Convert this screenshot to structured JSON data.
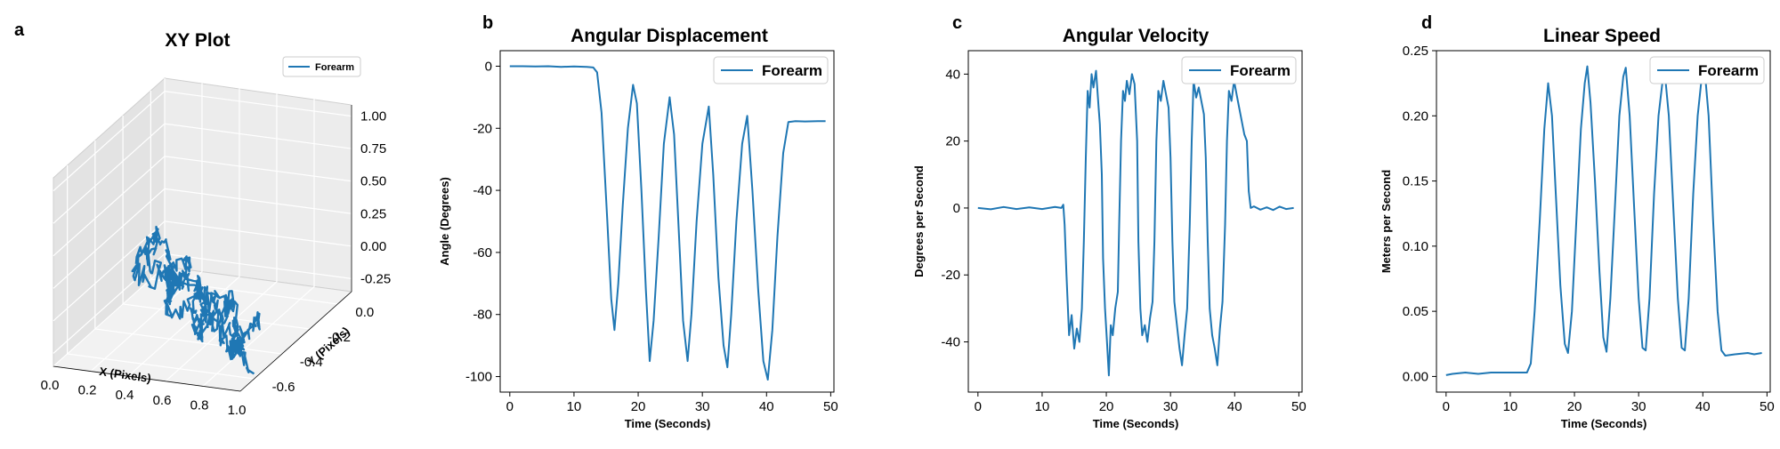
{
  "chart_data": [
    {
      "id": "a",
      "type": "line",
      "panel_label": "a",
      "title": "XY Plot",
      "xlabel": "X (Pixels)",
      "ylabel": "Y (Pixels)",
      "zlabel": "",
      "xlim": [
        0,
        1
      ],
      "ylim": [
        -0.7,
        0.1
      ],
      "zlim": [
        -0.35,
        1.1
      ],
      "xticks": [
        "0.0",
        "0.2",
        "0.4",
        "0.6",
        "0.8",
        "1.0"
      ],
      "yticks": [
        "-0.6",
        "-0.4",
        "-0.2",
        "0.0"
      ],
      "zticks": [
        "-0.25",
        "0.00",
        "0.25",
        "0.50",
        "0.75",
        "1.00"
      ],
      "legend": "top-right",
      "grid": true,
      "projection": "3d",
      "series": [
        {
          "name": "Forearm",
          "color": "#1f77b4",
          "trajectory": {
            "x_range": [
              0.0,
              1.0
            ],
            "y_range": [
              -0.05,
              -0.62
            ],
            "z_range": [
              -0.35,
              0.15
            ],
            "note_oscillation": "repeated back-and-forth strokes"
          }
        }
      ]
    },
    {
      "id": "b",
      "type": "line",
      "panel_label": "b",
      "title": "Angular Displacement",
      "xlabel": "Time (Seconds)",
      "ylabel": "Angle (Degrees)",
      "xlim": [
        -1.5,
        50.5
      ],
      "ylim": [
        -105,
        5
      ],
      "xticks": [
        0,
        10,
        20,
        30,
        40,
        50
      ],
      "yticks": [
        0,
        -20,
        -40,
        -60,
        -80,
        -100
      ],
      "legend": "top-right",
      "grid": false,
      "series": [
        {
          "name": "Forearm",
          "color": "#1f77b4",
          "points": [
            [
              0,
              0
            ],
            [
              2,
              0
            ],
            [
              4,
              -0.1
            ],
            [
              6,
              0
            ],
            [
              8,
              -0.2
            ],
            [
              10,
              -0.1
            ],
            [
              12,
              -0.2
            ],
            [
              13,
              -0.4
            ],
            [
              13.6,
              -2
            ],
            [
              14.3,
              -15
            ],
            [
              15.2,
              -50
            ],
            [
              15.8,
              -75
            ],
            [
              16.3,
              -85
            ],
            [
              16.9,
              -70
            ],
            [
              17.6,
              -45
            ],
            [
              18.4,
              -20
            ],
            [
              19.2,
              -6
            ],
            [
              19.8,
              -12
            ],
            [
              20.5,
              -40
            ],
            [
              21.2,
              -72
            ],
            [
              21.8,
              -95
            ],
            [
              22.4,
              -82
            ],
            [
              23.2,
              -55
            ],
            [
              24.0,
              -25
            ],
            [
              24.9,
              -10
            ],
            [
              25.6,
              -22
            ],
            [
              26.3,
              -52
            ],
            [
              27.0,
              -82
            ],
            [
              27.7,
              -95
            ],
            [
              28.3,
              -80
            ],
            [
              29.1,
              -50
            ],
            [
              30.0,
              -25
            ],
            [
              31.0,
              -13
            ],
            [
              31.7,
              -35
            ],
            [
              32.5,
              -68
            ],
            [
              33.3,
              -90
            ],
            [
              33.9,
              -97
            ],
            [
              34.5,
              -80
            ],
            [
              35.3,
              -50
            ],
            [
              36.2,
              -25
            ],
            [
              37.0,
              -16
            ],
            [
              37.8,
              -40
            ],
            [
              38.7,
              -72
            ],
            [
              39.5,
              -95
            ],
            [
              40.2,
              -101
            ],
            [
              40.9,
              -85
            ],
            [
              41.7,
              -55
            ],
            [
              42.6,
              -28
            ],
            [
              43.4,
              -18
            ],
            [
              44.5,
              -17.7
            ],
            [
              46,
              -17.8
            ],
            [
              48,
              -17.7
            ],
            [
              49.2,
              -17.7
            ]
          ]
        }
      ]
    },
    {
      "id": "c",
      "type": "line",
      "panel_label": "c",
      "title": "Angular Velocity",
      "xlabel": "Time (Seconds)",
      "ylabel": "Degrees per Second",
      "xlim": [
        -1.5,
        50.5
      ],
      "ylim": [
        -55,
        47
      ],
      "xticks": [
        0,
        10,
        20,
        30,
        40,
        50
      ],
      "yticks": [
        40,
        20,
        0,
        -20,
        -40
      ],
      "legend": "top-right",
      "grid": false,
      "series": [
        {
          "name": "Forearm",
          "color": "#1f77b4",
          "points": [
            [
              0,
              0
            ],
            [
              2,
              -0.4
            ],
            [
              4,
              0.3
            ],
            [
              6,
              -0.3
            ],
            [
              8,
              0.2
            ],
            [
              10,
              -0.3
            ],
            [
              12,
              0.3
            ],
            [
              13,
              0
            ],
            [
              13.3,
              1
            ],
            [
              13.5,
              -5
            ],
            [
              13.8,
              -20
            ],
            [
              14.2,
              -38
            ],
            [
              14.6,
              -32
            ],
            [
              15.0,
              -42
            ],
            [
              15.4,
              -36
            ],
            [
              15.8,
              -40
            ],
            [
              16.2,
              -30
            ],
            [
              16.5,
              -10
            ],
            [
              16.8,
              15
            ],
            [
              17.1,
              35
            ],
            [
              17.4,
              30
            ],
            [
              17.7,
              40
            ],
            [
              18.0,
              36
            ],
            [
              18.4,
              41
            ],
            [
              18.8,
              30
            ],
            [
              19.0,
              25
            ],
            [
              19.3,
              10
            ],
            [
              19.5,
              -15
            ],
            [
              19.8,
              -30
            ],
            [
              20.1,
              -40
            ],
            [
              20.4,
              -50
            ],
            [
              20.7,
              -35
            ],
            [
              21.0,
              -38
            ],
            [
              21.4,
              -30
            ],
            [
              21.8,
              -25
            ],
            [
              22.0,
              -5
            ],
            [
              22.3,
              20
            ],
            [
              22.6,
              35
            ],
            [
              22.9,
              32
            ],
            [
              23.2,
              38
            ],
            [
              23.6,
              34
            ],
            [
              24.0,
              40
            ],
            [
              24.4,
              37
            ],
            [
              24.8,
              20
            ],
            [
              25.0,
              -10
            ],
            [
              25.3,
              -30
            ],
            [
              25.6,
              -38
            ],
            [
              26.0,
              -35
            ],
            [
              26.4,
              -40
            ],
            [
              26.8,
              -33
            ],
            [
              27.2,
              -28
            ],
            [
              27.5,
              -10
            ],
            [
              27.8,
              20
            ],
            [
              28.1,
              35
            ],
            [
              28.5,
              32
            ],
            [
              28.9,
              38
            ],
            [
              29.3,
              34
            ],
            [
              29.7,
              30
            ],
            [
              30.0,
              15
            ],
            [
              30.3,
              -10
            ],
            [
              30.6,
              -28
            ],
            [
              31.0,
              -35
            ],
            [
              31.4,
              -42
            ],
            [
              31.8,
              -47
            ],
            [
              32.2,
              -38
            ],
            [
              32.6,
              -30
            ],
            [
              33.0,
              -5
            ],
            [
              33.3,
              20
            ],
            [
              33.6,
              38
            ],
            [
              34.0,
              33
            ],
            [
              34.4,
              36
            ],
            [
              34.8,
              32
            ],
            [
              35.2,
              28
            ],
            [
              35.5,
              15
            ],
            [
              35.8,
              -10
            ],
            [
              36.1,
              -30
            ],
            [
              36.5,
              -38
            ],
            [
              36.9,
              -42
            ],
            [
              37.3,
              -47
            ],
            [
              37.7,
              -36
            ],
            [
              38.1,
              -28
            ],
            [
              38.5,
              -5
            ],
            [
              38.8,
              20
            ],
            [
              39.1,
              35
            ],
            [
              39.5,
              32
            ],
            [
              39.9,
              38
            ],
            [
              40.3,
              34
            ],
            [
              40.7,
              30
            ],
            [
              41.1,
              26
            ],
            [
              41.5,
              22
            ],
            [
              41.9,
              20
            ],
            [
              42.2,
              5
            ],
            [
              42.5,
              0
            ],
            [
              43,
              0.5
            ],
            [
              44,
              -0.5
            ],
            [
              45,
              0.2
            ],
            [
              46,
              -0.6
            ],
            [
              47,
              0.4
            ],
            [
              48,
              -0.3
            ],
            [
              49.2,
              0
            ]
          ]
        }
      ]
    },
    {
      "id": "d",
      "type": "line",
      "panel_label": "d",
      "title": "Linear Speed",
      "xlabel": "Time (Seconds)",
      "ylabel": "Meters per Second",
      "xlim": [
        -1.5,
        50.5
      ],
      "ylim": [
        -0.012,
        0.25
      ],
      "xticks": [
        0,
        10,
        20,
        30,
        40,
        50
      ],
      "yticks": [
        "0.00",
        "0.05",
        "0.10",
        "0.15",
        "0.20",
        "0.25"
      ],
      "legend": "top-right",
      "grid": false,
      "series": [
        {
          "name": "Forearm",
          "color": "#1f77b4",
          "points": [
            [
              0,
              0.001
            ],
            [
              1,
              0.002
            ],
            [
              3,
              0.003
            ],
            [
              5,
              0.002
            ],
            [
              7,
              0.003
            ],
            [
              9,
              0.003
            ],
            [
              11,
              0.003
            ],
            [
              12.6,
              0.003
            ],
            [
              13.2,
              0.01
            ],
            [
              13.8,
              0.05
            ],
            [
              14.6,
              0.12
            ],
            [
              15.3,
              0.19
            ],
            [
              15.9,
              0.225
            ],
            [
              16.5,
              0.2
            ],
            [
              17.1,
              0.14
            ],
            [
              17.8,
              0.07
            ],
            [
              18.5,
              0.025
            ],
            [
              19.0,
              0.018
            ],
            [
              19.6,
              0.05
            ],
            [
              20.3,
              0.12
            ],
            [
              21.0,
              0.19
            ],
            [
              21.6,
              0.225
            ],
            [
              22.0,
              0.238
            ],
            [
              22.5,
              0.21
            ],
            [
              23.2,
              0.15
            ],
            [
              23.9,
              0.08
            ],
            [
              24.5,
              0.03
            ],
            [
              25.0,
              0.019
            ],
            [
              25.6,
              0.06
            ],
            [
              26.3,
              0.13
            ],
            [
              27.0,
              0.2
            ],
            [
              27.6,
              0.23
            ],
            [
              28.0,
              0.237
            ],
            [
              28.6,
              0.2
            ],
            [
              29.3,
              0.13
            ],
            [
              30.0,
              0.06
            ],
            [
              30.6,
              0.022
            ],
            [
              31.1,
              0.02
            ],
            [
              31.7,
              0.06
            ],
            [
              32.4,
              0.14
            ],
            [
              33.1,
              0.2
            ],
            [
              33.7,
              0.225
            ],
            [
              34.1,
              0.232
            ],
            [
              34.7,
              0.2
            ],
            [
              35.4,
              0.13
            ],
            [
              36.1,
              0.06
            ],
            [
              36.7,
              0.022
            ],
            [
              37.2,
              0.02
            ],
            [
              37.8,
              0.06
            ],
            [
              38.5,
              0.14
            ],
            [
              39.2,
              0.2
            ],
            [
              39.8,
              0.228
            ],
            [
              40.3,
              0.235
            ],
            [
              40.9,
              0.2
            ],
            [
              41.6,
              0.12
            ],
            [
              42.3,
              0.05
            ],
            [
              42.9,
              0.02
            ],
            [
              43.5,
              0.016
            ],
            [
              45,
              0.017
            ],
            [
              47,
              0.018
            ],
            [
              48,
              0.017
            ],
            [
              49.2,
              0.018
            ]
          ]
        }
      ]
    }
  ]
}
